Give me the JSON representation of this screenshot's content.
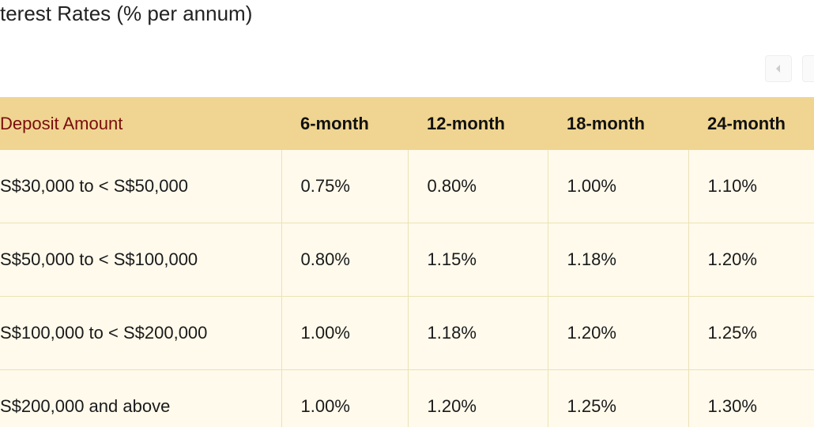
{
  "header": {
    "title": "terest Rates (% per annum)"
  },
  "table": {
    "columns": [
      "Deposit Amount",
      "6-month",
      "12-month",
      "18-month",
      "24-month"
    ],
    "rows": [
      [
        "S$30,000 to < S$50,000",
        "0.75%",
        "0.80%",
        "1.00%",
        "1.10%"
      ],
      [
        "S$50,000 to < S$100,000",
        "0.80%",
        "1.15%",
        "1.18%",
        "1.20%"
      ],
      [
        "S$100,000 to < S$200,000",
        "1.00%",
        "1.18%",
        "1.20%",
        "1.25%"
      ],
      [
        "S$200,000 and above",
        "1.00%",
        "1.20%",
        "1.25%",
        "1.30%"
      ]
    ]
  }
}
